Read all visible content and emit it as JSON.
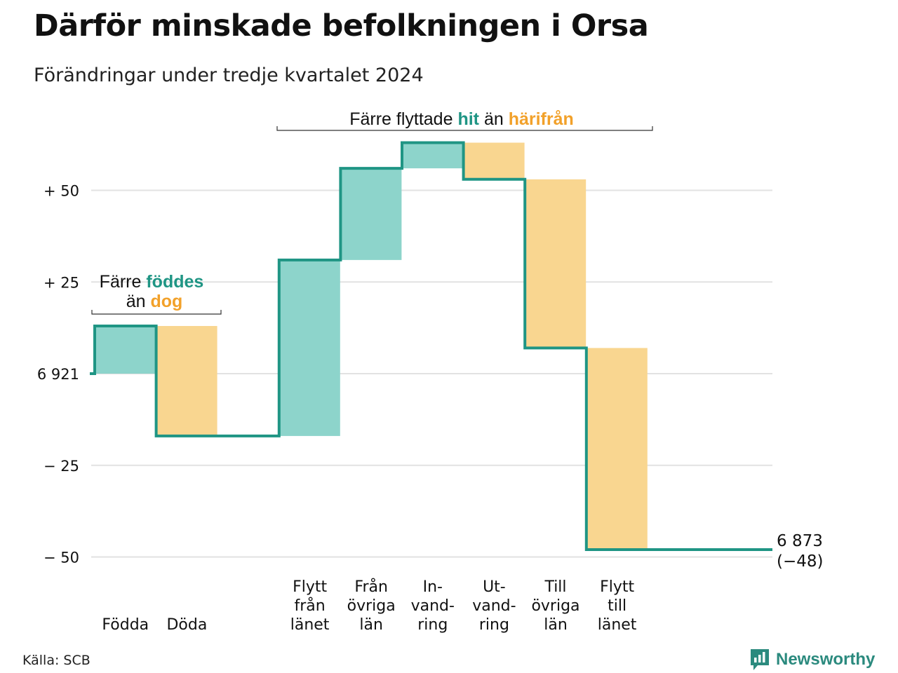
{
  "title": "Därför minskade befolkningen i Orsa",
  "subtitle": "Förändringar under tredje kvartalet 2024",
  "source": "Källa: SCB",
  "brand": "Newsworthy",
  "colors": {
    "increase_fill": "#8dd4cb",
    "decrease_fill": "#f9d690",
    "line": "#1f9584",
    "teal_text": "#1f9584",
    "orange_text": "#f2a12a",
    "grid": "#e2e2e2"
  },
  "annotations": {
    "births_line1_prefix": "Färre",
    "births_line1_highlight": "föddes",
    "births_line2_prefix": "än",
    "births_line2_highlight": "dog",
    "migration_prefix": "Färre flyttade",
    "migration_highlight1": "hit",
    "migration_middle": "än",
    "migration_highlight2": "härifrån"
  },
  "chart_data": {
    "type": "waterfall",
    "title": "Därför minskade befolkningen i Orsa",
    "subtitle": "Förändringar under tredje kvartalet 2024",
    "start_value": 6921,
    "end_value": 6873,
    "end_change_label": "(−48)",
    "ylim": [
      -52,
      67
    ],
    "yticks": [
      {
        "value": 50,
        "label": "+ 50"
      },
      {
        "value": 25,
        "label": "+ 25"
      },
      {
        "value": 0,
        "label": "6 921"
      },
      {
        "value": -25,
        "label": "− 25"
      },
      {
        "value": -50,
        "label": "− 50"
      }
    ],
    "end_label_line1": "6 873",
    "end_label_line2": "(−48)",
    "steps": [
      {
        "category": "Födda",
        "label_lines": [
          "",
          "",
          "Födda"
        ],
        "change": 13
      },
      {
        "category": "Döda",
        "label_lines": [
          "",
          "",
          "Döda"
        ],
        "change": -30
      },
      {
        "category": "gap",
        "label_lines": [
          "",
          "",
          ""
        ],
        "change": 0
      },
      {
        "category": "Flytt från länet",
        "label_lines": [
          "Flytt",
          "från",
          "länet"
        ],
        "change": 48
      },
      {
        "category": "Från övriga län",
        "label_lines": [
          "Från",
          "övriga",
          "län"
        ],
        "change": 25
      },
      {
        "category": "Invandring",
        "label_lines": [
          "In-",
          "vand-",
          "ring"
        ],
        "change": 7
      },
      {
        "category": "Utvandring",
        "label_lines": [
          "Ut-",
          "vand-",
          "ring"
        ],
        "change": -10
      },
      {
        "category": "Till övriga län",
        "label_lines": [
          "Till",
          "övriga",
          "län"
        ],
        "change": -46
      },
      {
        "category": "Flytt till länet",
        "label_lines": [
          "Flytt",
          "till",
          "länet"
        ],
        "change": -55
      }
    ],
    "grid": true
  }
}
